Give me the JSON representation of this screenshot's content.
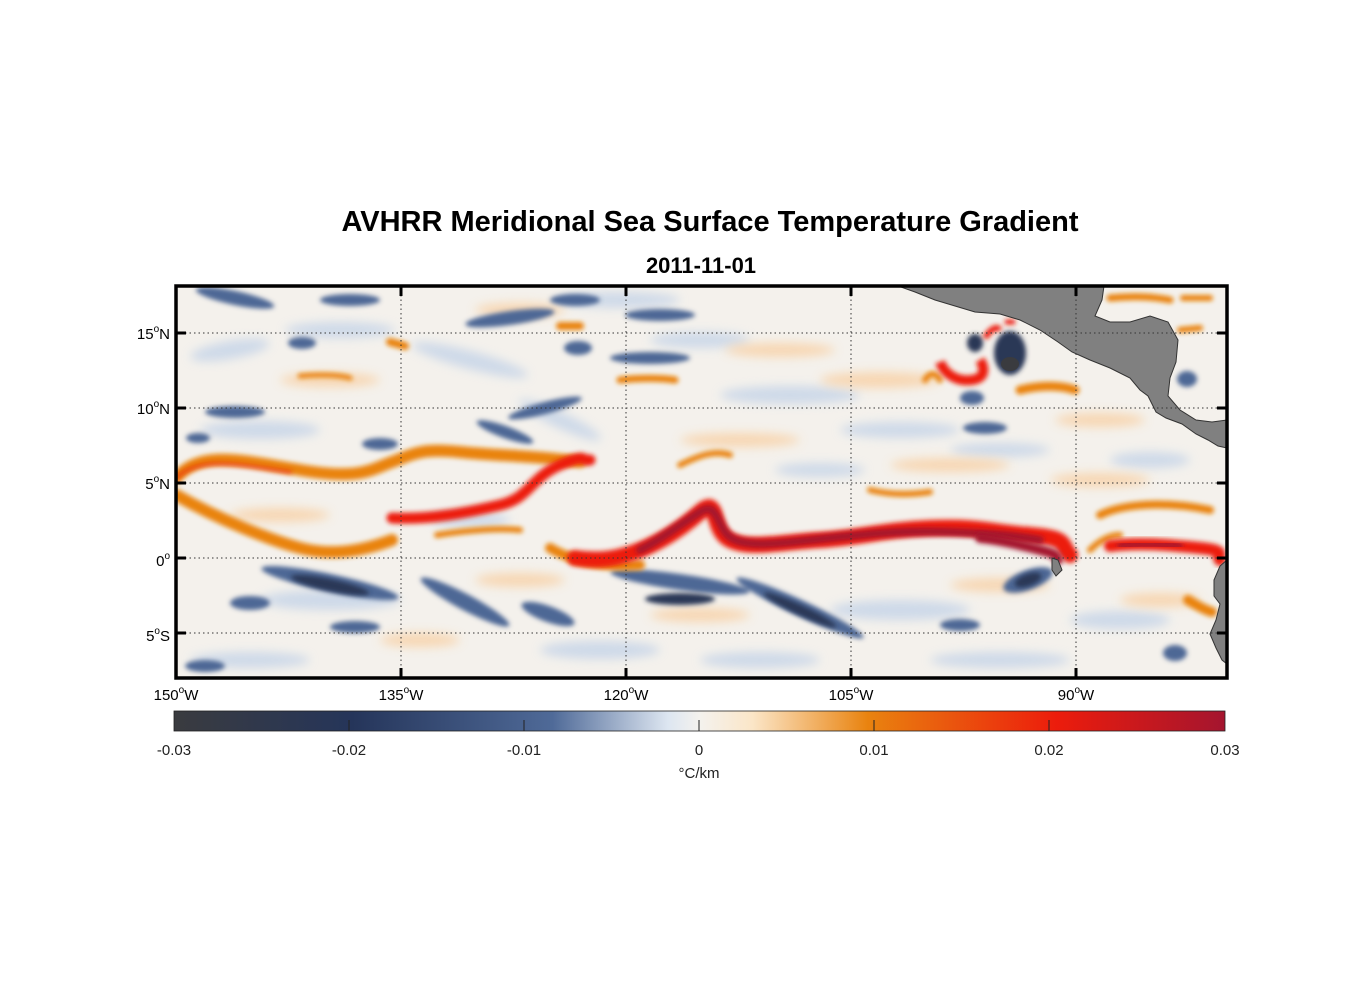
{
  "title": "AVHRR Meridional Sea Surface Temperature Gradient",
  "subtitle": "2011-11-01",
  "map": {
    "lon_range": [
      -150,
      -82
    ],
    "lat_range": [
      -8,
      18
    ],
    "lon_ticks": [
      {
        "value": -150,
        "deg": "150",
        "hemi": "W"
      },
      {
        "value": -135,
        "deg": "135",
        "hemi": "W"
      },
      {
        "value": -120,
        "deg": "120",
        "hemi": "W"
      },
      {
        "value": -105,
        "deg": "105",
        "hemi": "W"
      },
      {
        "value": -90,
        "deg": "90",
        "hemi": "W"
      }
    ],
    "lat_ticks": [
      {
        "value": 15,
        "deg": "15",
        "hemi": "N"
      },
      {
        "value": 10,
        "deg": "10",
        "hemi": "N"
      },
      {
        "value": 5,
        "deg": "5",
        "hemi": "N"
      },
      {
        "value": 0,
        "deg": "0",
        "hemi": ""
      },
      {
        "value": -5,
        "deg": "5",
        "hemi": "S"
      }
    ],
    "grid": "dotted",
    "land_color": "#808080",
    "colormap": [
      "#3a3b3f",
      "#25355a",
      "#4f6a98",
      "#e6edf3",
      "#fbe6c8",
      "#e9830f",
      "#ec1c0c",
      "#a4152f"
    ]
  },
  "colorbar": {
    "ticks": [
      "-0.03",
      "-0.02",
      "-0.01",
      "0",
      "0.01",
      "0.02",
      "0.03"
    ],
    "label": "°C/km"
  }
}
